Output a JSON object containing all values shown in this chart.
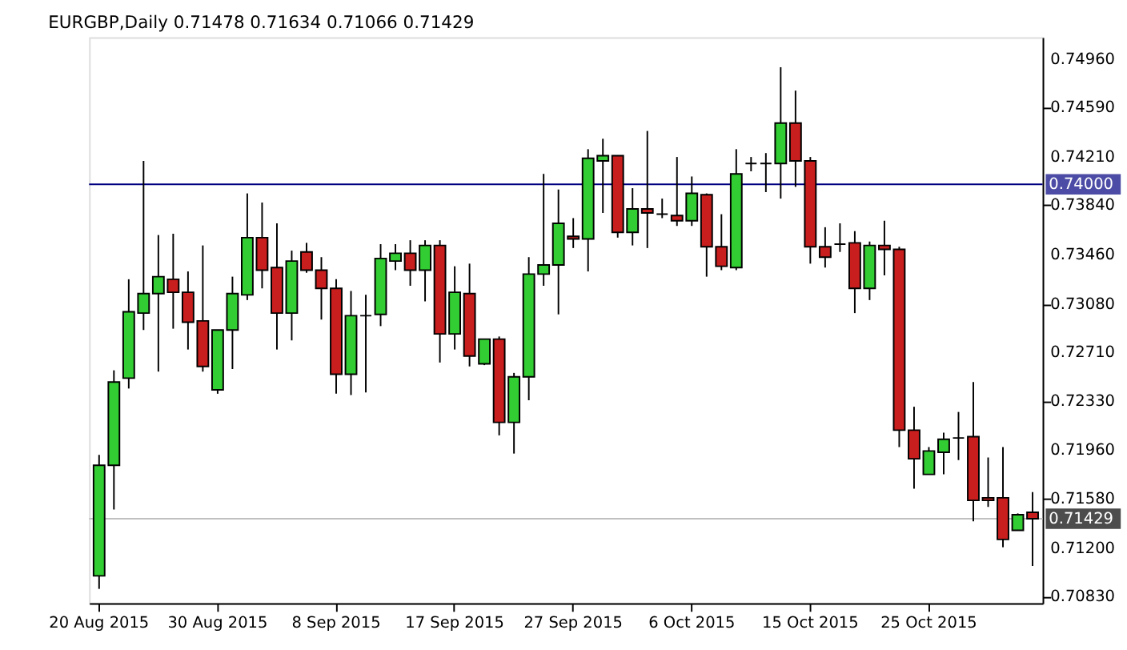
{
  "chart_data": {
    "type": "candlestick",
    "title": "EURGBP,Daily  0.71478 0.71634 0.71066 0.71429",
    "categories": [
      "20 Aug 2015",
      null,
      null,
      null,
      null,
      null,
      null,
      null,
      "30 Aug 2015",
      null,
      null,
      null,
      null,
      null,
      null,
      null,
      "8 Sep 2015",
      null,
      null,
      null,
      null,
      null,
      null,
      null,
      "17 Sep 2015",
      null,
      null,
      null,
      null,
      null,
      null,
      null,
      "27 Sep 2015",
      null,
      null,
      null,
      null,
      null,
      null,
      null,
      "6 Oct 2015",
      null,
      null,
      null,
      null,
      null,
      null,
      null,
      "15 Oct 2015",
      null,
      null,
      null,
      null,
      null,
      null,
      null,
      "25 Oct 2015",
      null,
      null,
      null,
      null,
      null,
      null,
      null
    ],
    "ohlc": [
      [
        0.7099,
        0.7192,
        0.7089,
        0.7184
      ],
      [
        0.7184,
        0.7257,
        0.715,
        0.7248
      ],
      [
        0.7251,
        0.7327,
        0.7243,
        0.7302
      ],
      [
        0.7301,
        0.7418,
        0.7288,
        0.7316
      ],
      [
        0.7316,
        0.7361,
        0.7256,
        0.7329
      ],
      [
        0.7327,
        0.7362,
        0.7289,
        0.7317
      ],
      [
        0.7317,
        0.7333,
        0.7273,
        0.7294
      ],
      [
        0.7295,
        0.7353,
        0.7256,
        0.726
      ],
      [
        0.7242,
        0.7288,
        0.7239,
        0.7288
      ],
      [
        0.7288,
        0.7329,
        0.7258,
        0.7316
      ],
      [
        0.7315,
        0.7393,
        0.7311,
        0.7359
      ],
      [
        0.7359,
        0.7386,
        0.732,
        0.7334
      ],
      [
        0.7336,
        0.737,
        0.7273,
        0.7301
      ],
      [
        0.7301,
        0.7349,
        0.728,
        0.7341
      ],
      [
        0.7348,
        0.7355,
        0.7332,
        0.7334
      ],
      [
        0.7334,
        0.7344,
        0.7296,
        0.732
      ],
      [
        0.732,
        0.7327,
        0.7239,
        0.7254
      ],
      [
        0.7254,
        0.7318,
        0.7238,
        0.7299
      ],
      [
        0.7299,
        0.7315,
        0.724,
        0.7299
      ],
      [
        0.73,
        0.7354,
        0.7291,
        0.7343
      ],
      [
        0.7341,
        0.7354,
        0.7334,
        0.7347
      ],
      [
        0.7347,
        0.7357,
        0.7322,
        0.7334
      ],
      [
        0.7334,
        0.7357,
        0.731,
        0.7353
      ],
      [
        0.7353,
        0.7357,
        0.7263,
        0.7285
      ],
      [
        0.7285,
        0.7337,
        0.7273,
        0.7317
      ],
      [
        0.7316,
        0.7339,
        0.726,
        0.7268
      ],
      [
        0.7262,
        0.7281,
        0.7261,
        0.7281
      ],
      [
        0.7281,
        0.7283,
        0.7207,
        0.7217
      ],
      [
        0.7217,
        0.7255,
        0.7193,
        0.7252
      ],
      [
        0.7252,
        0.7344,
        0.7234,
        0.7331
      ],
      [
        0.7331,
        0.7408,
        0.7322,
        0.7338
      ],
      [
        0.7338,
        0.7396,
        0.73,
        0.737
      ],
      [
        0.736,
        0.7374,
        0.7351,
        0.7358
      ],
      [
        0.7358,
        0.7427,
        0.7333,
        0.742
      ],
      [
        0.7418,
        0.7435,
        0.7378,
        0.7422
      ],
      [
        0.7422,
        0.7422,
        0.7359,
        0.7363
      ],
      [
        0.7363,
        0.7397,
        0.7353,
        0.7381
      ],
      [
        0.7381,
        0.7441,
        0.7351,
        0.7378
      ],
      [
        0.7377,
        0.7389,
        0.7374,
        0.7377
      ],
      [
        0.7376,
        0.7421,
        0.7368,
        0.7372
      ],
      [
        0.7372,
        0.7406,
        0.7368,
        0.7393
      ],
      [
        0.7392,
        0.7393,
        0.7329,
        0.7352
      ],
      [
        0.7352,
        0.7377,
        0.7334,
        0.7337
      ],
      [
        0.7336,
        0.7427,
        0.7334,
        0.7408
      ],
      [
        0.7416,
        0.7421,
        0.741,
        0.7416
      ],
      [
        0.7416,
        0.7424,
        0.7394,
        0.7416
      ],
      [
        0.7416,
        0.749,
        0.7389,
        0.7447
      ],
      [
        0.7447,
        0.7472,
        0.7398,
        0.7418
      ],
      [
        0.7418,
        0.7421,
        0.7339,
        0.7352
      ],
      [
        0.7352,
        0.7367,
        0.7336,
        0.7344
      ],
      [
        0.7354,
        0.737,
        0.7348,
        0.7354
      ],
      [
        0.7355,
        0.7364,
        0.7301,
        0.732
      ],
      [
        0.732,
        0.7356,
        0.7311,
        0.7353
      ],
      [
        0.7353,
        0.7372,
        0.733,
        0.735
      ],
      [
        0.735,
        0.7352,
        0.7198,
        0.7211
      ],
      [
        0.7211,
        0.7229,
        0.7166,
        0.7189
      ],
      [
        0.7177,
        0.7198,
        0.7177,
        0.7195
      ],
      [
        0.7194,
        0.7209,
        0.7177,
        0.7204
      ],
      [
        0.7205,
        0.7225,
        0.7188,
        0.7205
      ],
      [
        0.7206,
        0.7248,
        0.7141,
        0.7157
      ],
      [
        0.7159,
        0.719,
        0.7152,
        0.7157
      ],
      [
        0.7159,
        0.7198,
        0.7121,
        0.7127
      ],
      [
        0.7134,
        0.7147,
        0.7134,
        0.7146
      ],
      [
        0.71478,
        0.71634,
        0.71066,
        0.71429
      ]
    ],
    "ylim": [
      0.7078,
      0.7513
    ],
    "yticks": [
      {
        "value": 0.7496,
        "label": "0.74960"
      },
      {
        "value": 0.7459,
        "label": "0.74590"
      },
      {
        "value": 0.7421,
        "label": "0.74210"
      },
      {
        "value": 0.7384,
        "label": "0.73840"
      },
      {
        "value": 0.7346,
        "label": "0.73460"
      },
      {
        "value": 0.7308,
        "label": "0.73080"
      },
      {
        "value": 0.7271,
        "label": "0.72710"
      },
      {
        "value": 0.7233,
        "label": "0.72330"
      },
      {
        "value": 0.7196,
        "label": "0.71960"
      },
      {
        "value": 0.7158,
        "label": "0.71580"
      },
      {
        "value": 0.712,
        "label": "0.71200"
      },
      {
        "value": 0.7083,
        "label": "0.70830"
      }
    ],
    "ref_lines": [
      {
        "axis": "y",
        "value": 0.74,
        "label": "0.74000",
        "color": "#000080"
      },
      {
        "axis": "y",
        "value": 0.71429,
        "label": "0.71429",
        "color": "#c0c0c0"
      }
    ],
    "grid": false
  }
}
